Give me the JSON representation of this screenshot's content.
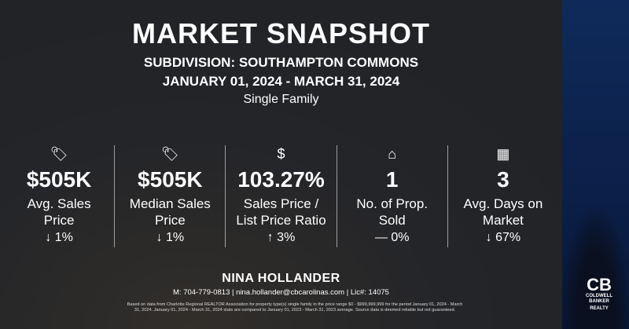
{
  "header": {
    "title": "MARKET SNAPSHOT",
    "subdivision": "SUBDIVISION: SOUTHAMPTON COMMONS",
    "period": "JANUARY 01, 2024 - MARCH 31, 2024",
    "property_type": "Single Family"
  },
  "stats": [
    {
      "icon": "price-tag-icon",
      "glyph": "🏷",
      "value": "$505K",
      "label1": "Avg. Sales",
      "label2": "Price",
      "change": "↓ 1%"
    },
    {
      "icon": "price-tag-icon",
      "glyph": "🏷",
      "value": "$505K",
      "label1": "Median Sales",
      "label2": "Price",
      "change": "↓ 1%"
    },
    {
      "icon": "dollar-circle-icon",
      "glyph": "$",
      "value": "103.27%",
      "label1": "Sales Price /",
      "label2": "List Price Ratio",
      "change": "↑ 3%"
    },
    {
      "icon": "house-icon",
      "glyph": "⌂",
      "value": "1",
      "label1": "No. of Prop.",
      "label2": "Sold",
      "change": "— 0%"
    },
    {
      "icon": "calendar-icon",
      "glyph": "▦",
      "value": "3",
      "label1": "Avg. Days on",
      "label2": "Market",
      "change": "↓ 67%"
    }
  ],
  "agent": {
    "name": "NINA HOLLANDER",
    "contact": "M: 704-779-0813 | nina.hollander@cbcarolinas.com | Lic#: 14075"
  },
  "disclaimer": "Based on data from Charlotte Regional REALTOR Association for property type(s) single family in the price range $0 - $999,999,999 for the period January 01, 2024 - March 31, 2024. January 01, 2024 - March 31, 2024 stats are compared to January 01, 2023 - March 31, 2023 average. Source data is deemed reliable but not guaranteed.",
  "logo": {
    "mark": "CB",
    "line1": "COLDWELL",
    "line2": "BANKER",
    "line3": "REALTY"
  },
  "colors": {
    "panel": "#232428",
    "brand_blue": "#0f2a5a"
  }
}
